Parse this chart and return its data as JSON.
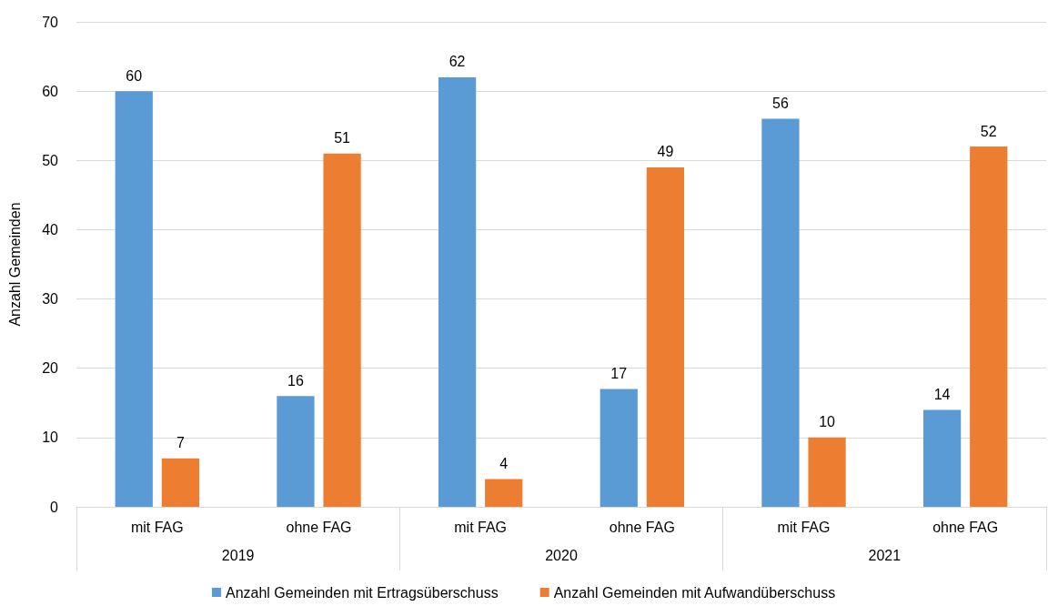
{
  "chart_data": {
    "type": "bar",
    "ylabel": "Anzahl Gemeinden",
    "categories": [
      "mit FAG",
      "ohne FAG",
      "mit FAG",
      "ohne FAG",
      "mit FAG",
      "ohne FAG"
    ],
    "annotations": [
      "2019",
      "2020",
      "2021"
    ],
    "series": [
      {
        "name": "Anzahl Gemeinden mit Ertragsüberschuss",
        "color": "#5b9bd5",
        "values": [
          60,
          16,
          62,
          17,
          56,
          14
        ]
      },
      {
        "name": "Anzahl Gemeinden mit Aufwandüberschuss",
        "color": "#ed7d31",
        "values": [
          7,
          51,
          4,
          49,
          10,
          52
        ]
      }
    ],
    "ylim": [
      0,
      70
    ],
    "yticks": [
      0,
      10,
      20,
      30,
      40,
      50,
      60,
      70
    ],
    "grid": "y",
    "legend": "bottom",
    "data_labels": true
  }
}
